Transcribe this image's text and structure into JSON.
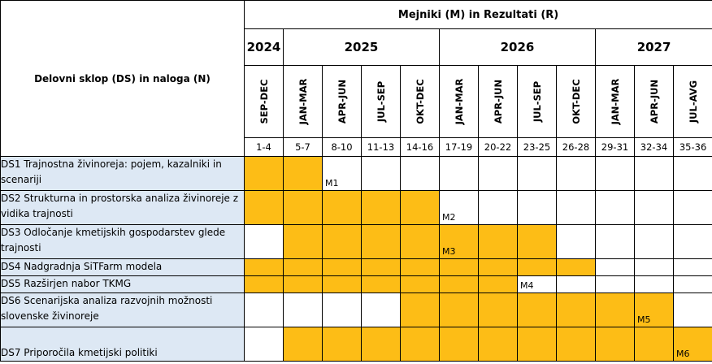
{
  "header": {
    "title": "Mejniki (M) in Rezultati (R)",
    "ds_label": "Delovni sklop (DS) in naloga (N)"
  },
  "years": [
    {
      "label": "2024",
      "span": 1
    },
    {
      "label": "2025",
      "span": 4
    },
    {
      "label": "2026",
      "span": 4
    },
    {
      "label": "2027",
      "span": 3
    }
  ],
  "periods": [
    {
      "label": "SEP-DEC",
      "months": "1-4"
    },
    {
      "label": "JAN-MAR",
      "months": "5-7"
    },
    {
      "label": "APR-JUN",
      "months": "8-10"
    },
    {
      "label": "JUL-SEP",
      "months": "11-13"
    },
    {
      "label": "OKT-DEC",
      "months": "14-16"
    },
    {
      "label": "JAN-MAR",
      "months": "17-19"
    },
    {
      "label": "APR-JUN",
      "months": "20-22"
    },
    {
      "label": "JUL-SEP",
      "months": "23-25"
    },
    {
      "label": "OKT-DEC",
      "months": "26-28"
    },
    {
      "label": "JAN-MAR",
      "months": "29-31"
    },
    {
      "label": "APR-JUN",
      "months": "32-34"
    },
    {
      "label": "JUL-AVG",
      "months": "35-36"
    }
  ],
  "tasks": [
    {
      "label": "DS1 Trajnostna živinoreja: pojem, kazalniki in scenariji",
      "active": [
        0,
        1
      ],
      "milestone": {
        "label": "M1",
        "col": 2
      },
      "size": "r2"
    },
    {
      "label": "DS2 Strukturna in prostorska analiza živinoreje z vidika trajnosti",
      "active": [
        0,
        1,
        2,
        3,
        4
      ],
      "milestone": {
        "label": "M2",
        "col": 5
      },
      "size": "r2"
    },
    {
      "label": "DS3 Odločanje kmetijskih gospodarstev glede trajnosti",
      "active": [
        1,
        2,
        3,
        4,
        5,
        6,
        7
      ],
      "milestone": {
        "label": "M3",
        "col": 5
      },
      "size": "r2"
    },
    {
      "label": "DS4 Nadgradnja SiTFarm modela",
      "active": [
        0,
        1,
        2,
        3,
        4,
        5,
        6,
        7,
        8
      ],
      "milestone": null,
      "size": "r1"
    },
    {
      "label": "DS5 Razširjen nabor TKMG",
      "active": [
        0,
        1,
        2,
        3,
        4,
        5,
        6
      ],
      "milestone": {
        "label": "M4",
        "col": 7
      },
      "size": "r1"
    },
    {
      "label": "DS6 Scenarijska analiza razvojnih možnosti slovenske živinoreje",
      "active": [
        4,
        5,
        6,
        7,
        8,
        9,
        10
      ],
      "milestone": {
        "label": "M5",
        "col": 10
      },
      "size": "r2"
    },
    {
      "label": "DS7 Priporočila kmetijski politiki",
      "active": [
        1,
        2,
        3,
        4,
        5,
        6,
        7,
        8,
        9,
        10,
        11
      ],
      "milestone": {
        "label": "M6",
        "col": 11
      },
      "size": "r2"
    }
  ],
  "colors": {
    "active": "#fdbd16",
    "task_bg": "#dde8f4"
  }
}
